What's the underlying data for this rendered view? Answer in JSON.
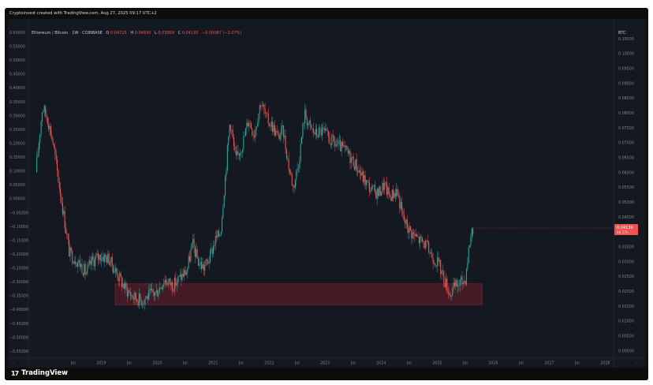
{
  "header_text": "Cryptoinvest created with TradingView.com, Aug 27, 2025 09:17 UTC+2",
  "footer_logo_text": "TradingView",
  "footer_logo_mark": "17",
  "colors": {
    "background": "#141820",
    "up": "#26a69a",
    "down": "#ef5350",
    "zone": "#6b1f2a",
    "axis_text": "#7d8290",
    "price_tag": "#ef5350"
  },
  "chart_data": {
    "type": "candlestick",
    "legend": {
      "symbol": "Ethereum / Bitcoin · 1W · COINBASE",
      "open_label": "O",
      "open": "0.04715",
      "high_label": "H",
      "high": "0.04830",
      "low_label": "L",
      "low": "0.03959",
      "close_label": "C",
      "close": "0.04130",
      "change": "−0.00087 (−2.07%)"
    },
    "left_axis": {
      "scale": "normalized",
      "ticks": [
        "0.60000",
        "0.55000",
        "0.50000",
        "0.45000",
        "0.40000",
        "0.35000",
        "0.30000",
        "0.25000",
        "0.20000",
        "0.15000",
        "0.10000",
        "0.05000",
        "0.00000",
        "−0.05000",
        "−0.10000",
        "−0.15000",
        "−0.20000",
        "−0.25000",
        "−0.30000",
        "−0.35000",
        "−0.40000",
        "−0.45000",
        "−0.50000",
        "−0.55000"
      ],
      "range": [
        -0.575,
        0.615
      ]
    },
    "right_axis": {
      "label": "BTC",
      "ticks": [
        "0.10500",
        "0.10000",
        "0.09500",
        "0.09000",
        "0.08500",
        "0.08000",
        "0.07500",
        "0.07000",
        "0.06500",
        "0.06000",
        "0.05500",
        "0.05000",
        "0.04500",
        "0.04000",
        "0.03500",
        "0.03000",
        "0.02500",
        "0.02000",
        "0.01500",
        "0.01000",
        "0.00500",
        "0.00000"
      ],
      "range": [
        -0.0025,
        0.1085
      ],
      "current_price": "0.04130",
      "current_price_value": 0.0413,
      "countdown": "4d 17h"
    },
    "x_axis": {
      "ticks": [
        "Jul",
        "2019",
        "Jul",
        "2020",
        "Jul",
        "2021",
        "Jul",
        "2022",
        "Jul",
        "2023",
        "Jul",
        "2024",
        "Jul",
        "2025",
        "Jul",
        "2026",
        "Jul",
        "2027",
        "Jul",
        "2028"
      ],
      "tick_years": [
        2018.5,
        2019,
        2019.5,
        2020,
        2020.5,
        2021,
        2021.5,
        2022,
        2022.5,
        2023,
        2023.5,
        2024,
        2024.5,
        2025,
        2025.5,
        2026,
        2026.5,
        2027,
        2027.5,
        2028
      ],
      "range": [
        2017.7,
        2028.15
      ]
    },
    "support_zone": {
      "x_start": 2019.25,
      "x_end": 2025.8,
      "y_low": 0.0155,
      "y_high": 0.0225
    },
    "price_path": [
      [
        2017.85,
        0.06
      ],
      [
        2017.97,
        0.082
      ],
      [
        2018.05,
        0.079
      ],
      [
        2018.15,
        0.071
      ],
      [
        2018.3,
        0.052
      ],
      [
        2018.45,
        0.033
      ],
      [
        2018.55,
        0.031
      ],
      [
        2018.65,
        0.029
      ],
      [
        2018.75,
        0.026
      ],
      [
        2018.85,
        0.03
      ],
      [
        2019.0,
        0.032
      ],
      [
        2019.15,
        0.031
      ],
      [
        2019.3,
        0.026
      ],
      [
        2019.45,
        0.021
      ],
      [
        2019.6,
        0.018
      ],
      [
        2019.75,
        0.017
      ],
      [
        2019.9,
        0.019
      ],
      [
        2020.0,
        0.0195
      ],
      [
        2020.15,
        0.024
      ],
      [
        2020.3,
        0.022
      ],
      [
        2020.45,
        0.025
      ],
      [
        2020.55,
        0.027
      ],
      [
        2020.65,
        0.036
      ],
      [
        2020.75,
        0.03
      ],
      [
        2020.85,
        0.028
      ],
      [
        2020.95,
        0.031
      ],
      [
        2021.05,
        0.037
      ],
      [
        2021.15,
        0.04
      ],
      [
        2021.25,
        0.062
      ],
      [
        2021.32,
        0.078
      ],
      [
        2021.42,
        0.064
      ],
      [
        2021.55,
        0.07
      ],
      [
        2021.65,
        0.078
      ],
      [
        2021.75,
        0.073
      ],
      [
        2021.87,
        0.084
      ],
      [
        2021.97,
        0.078
      ],
      [
        2022.07,
        0.076
      ],
      [
        2022.17,
        0.072
      ],
      [
        2022.27,
        0.074
      ],
      [
        2022.37,
        0.062
      ],
      [
        2022.45,
        0.055
      ],
      [
        2022.55,
        0.064
      ],
      [
        2022.65,
        0.08
      ],
      [
        2022.75,
        0.075
      ],
      [
        2022.85,
        0.073
      ],
      [
        2022.97,
        0.074
      ],
      [
        2023.1,
        0.071
      ],
      [
        2023.25,
        0.069
      ],
      [
        2023.4,
        0.067
      ],
      [
        2023.55,
        0.063
      ],
      [
        2023.7,
        0.058
      ],
      [
        2023.85,
        0.054
      ],
      [
        2023.97,
        0.053
      ],
      [
        2024.07,
        0.056
      ],
      [
        2024.17,
        0.052
      ],
      [
        2024.3,
        0.054
      ],
      [
        2024.42,
        0.044
      ],
      [
        2024.55,
        0.04
      ],
      [
        2024.65,
        0.038
      ],
      [
        2024.8,
        0.036
      ],
      [
        2024.93,
        0.032
      ],
      [
        2025.05,
        0.029
      ],
      [
        2025.15,
        0.024
      ],
      [
        2025.25,
        0.019
      ],
      [
        2025.35,
        0.022
      ],
      [
        2025.45,
        0.023
      ],
      [
        2025.52,
        0.024
      ],
      [
        2025.58,
        0.034
      ],
      [
        2025.64,
        0.041
      ]
    ]
  }
}
